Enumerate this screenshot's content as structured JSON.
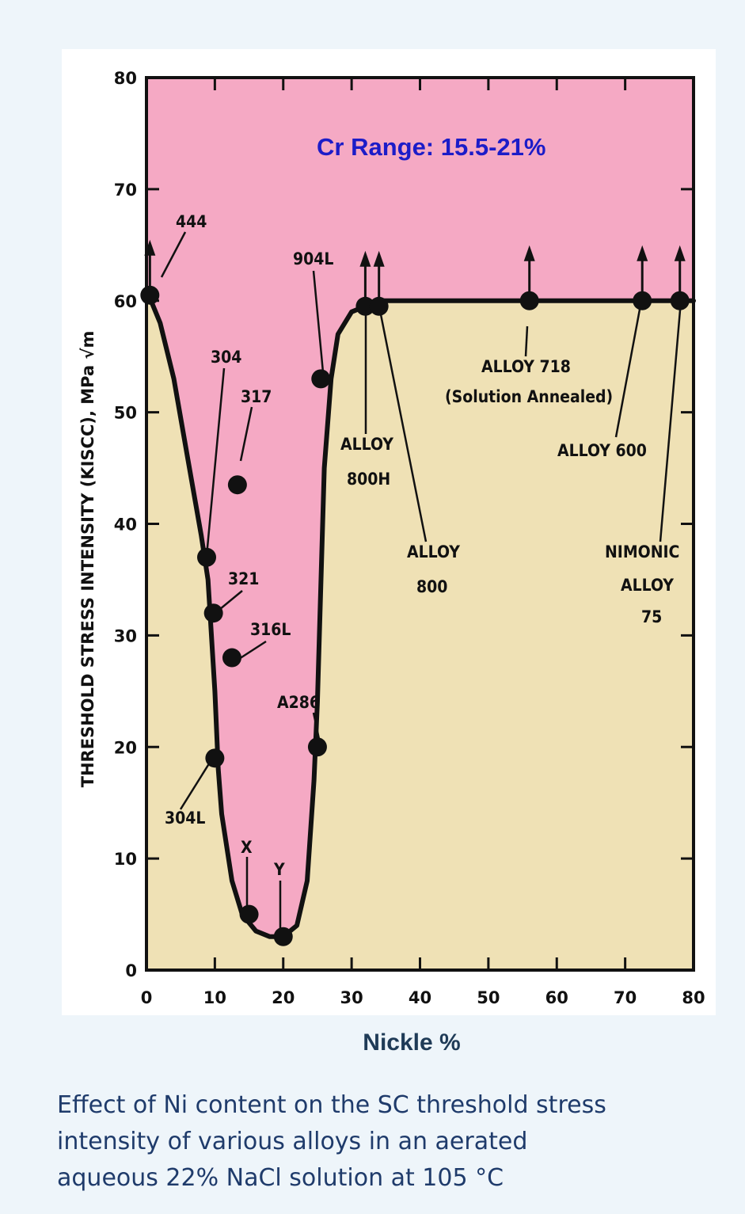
{
  "chart_data": {
    "type": "line",
    "title": "Cr Range: 15.5-21%",
    "xlabel": "Nickle %",
    "ylabel": "THRESHOLD STRESS INTENSITY (KISCC), MPa √m",
    "xlim": [
      0,
      80
    ],
    "ylim": [
      0,
      80
    ],
    "x_ticks": [
      "0",
      "10",
      "20",
      "30",
      "40",
      "50",
      "60",
      "70",
      "80"
    ],
    "y_ticks": [
      "0",
      "10",
      "20",
      "30",
      "40",
      "50",
      "60",
      "70",
      "80"
    ],
    "curve": [
      {
        "x": 0,
        "y": 61
      },
      {
        "x": 2,
        "y": 58
      },
      {
        "x": 4,
        "y": 53
      },
      {
        "x": 6,
        "y": 46
      },
      {
        "x": 8,
        "y": 39
      },
      {
        "x": 9,
        "y": 35
      },
      {
        "x": 10,
        "y": 25
      },
      {
        "x": 10.5,
        "y": 18
      },
      {
        "x": 11,
        "y": 14
      },
      {
        "x": 12.5,
        "y": 8
      },
      {
        "x": 14,
        "y": 5
      },
      {
        "x": 16,
        "y": 3.5
      },
      {
        "x": 18,
        "y": 3
      },
      {
        "x": 20,
        "y": 3
      },
      {
        "x": 22,
        "y": 4
      },
      {
        "x": 23.5,
        "y": 8
      },
      {
        "x": 24.5,
        "y": 17
      },
      {
        "x": 25,
        "y": 24
      },
      {
        "x": 26,
        "y": 45
      },
      {
        "x": 27,
        "y": 53
      },
      {
        "x": 28,
        "y": 57
      },
      {
        "x": 30,
        "y": 59
      },
      {
        "x": 34,
        "y": 60
      },
      {
        "x": 45,
        "y": 60
      },
      {
        "x": 60,
        "y": 60
      },
      {
        "x": 80,
        "y": 60
      }
    ],
    "points": [
      {
        "label": "444",
        "x": 0.5,
        "y": 60.5,
        "arrow": true
      },
      {
        "label": "304",
        "x": 8.8,
        "y": 37
      },
      {
        "label": "317",
        "x": 13.3,
        "y": 43.5
      },
      {
        "label": "321",
        "x": 9.8,
        "y": 32
      },
      {
        "label": "316L",
        "x": 12.5,
        "y": 28
      },
      {
        "label": "304L",
        "x": 10,
        "y": 19
      },
      {
        "label": "X",
        "x": 15,
        "y": 5
      },
      {
        "label": "Y",
        "x": 20,
        "y": 3
      },
      {
        "label": "A286",
        "x": 25,
        "y": 20
      },
      {
        "label": "904L",
        "x": 25.5,
        "y": 53
      },
      {
        "label": "ALLOY 800H",
        "x": 32,
        "y": 59.5,
        "arrow": true
      },
      {
        "label": "ALLOY 800",
        "x": 34,
        "y": 59.5,
        "arrow": true
      },
      {
        "label": "ALLOY 718 (Solution Annealed)",
        "x": 56,
        "y": 60,
        "arrow": true
      },
      {
        "label": "ALLOY 600",
        "x": 72.5,
        "y": 60,
        "arrow": true
      },
      {
        "label": "NIMONIC ALLOY 75",
        "x": 78,
        "y": 60,
        "arrow": true
      }
    ],
    "regions": {
      "above_curve": "#f5a9c4",
      "below_curve": "#efe1b5"
    },
    "legend": "none",
    "grid": false
  },
  "annotations": {
    "a444": "444",
    "a304": "304",
    "a317": "317",
    "a321": "321",
    "a316l": "316L",
    "a304l": "304L",
    "ax": "X",
    "ay": "Y",
    "a286": "A286",
    "a904l": "904L",
    "a800h_1": "ALLOY",
    "a800h_2": "800H",
    "a800_1": "ALLOY",
    "a800_2": "800",
    "a718_1": "ALLOY 718",
    "a718_2": "(Solution Annealed)",
    "a600": "ALLOY 600",
    "anim_1": "NIMONIC",
    "anim_2": "ALLOY",
    "anim_3": "75"
  },
  "caption_lines": [
    "Effect of Ni content on the SC threshold stress",
    "intensity of various alloys in an aerated",
    "aqueous 22% NaCl solution at 105 °C"
  ]
}
